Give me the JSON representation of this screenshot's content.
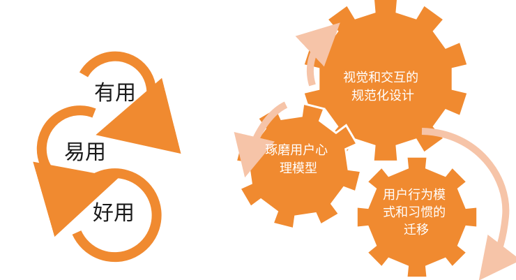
{
  "colors": {
    "accent": "#F08A30",
    "arrow_pale": "#F6C4A8",
    "text_dark": "#1A1A1A",
    "text_light": "#FFFFFF"
  },
  "rings": [
    {
      "label": "有用"
    },
    {
      "label": "易用"
    },
    {
      "label": "好用"
    }
  ],
  "gears": [
    {
      "lines": [
        "视觉和交互的",
        "规范化设计"
      ]
    },
    {
      "lines": [
        "琢磨用户心",
        "理模型"
      ]
    },
    {
      "lines": [
        "用户行为模",
        "式和习惯的",
        "迁移"
      ]
    }
  ]
}
